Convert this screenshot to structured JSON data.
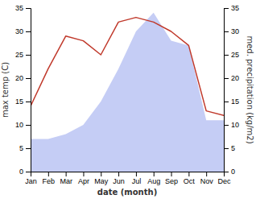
{
  "chart_data": {
    "type": "line",
    "categories": [
      "Jan",
      "Feb",
      "Mar",
      "Apr",
      "May",
      "Jun",
      "Jul",
      "Aug",
      "Sep",
      "Oct",
      "Nov",
      "Dec"
    ],
    "xlabel": "date (month)",
    "ylabel": "max temp (C)",
    "y2label": "med. precipitation (kg/m2)",
    "series": [
      {
        "type": "area",
        "axis": "y2",
        "color": "#c5cdf5",
        "values": [
          7,
          7,
          8,
          10,
          15,
          22,
          30,
          34,
          28,
          27,
          11,
          11
        ]
      },
      {
        "type": "line",
        "color": "#c0392b",
        "values": [
          14,
          22,
          29,
          28,
          25,
          32,
          33,
          32,
          30,
          27,
          13,
          12
        ]
      }
    ],
    "ylim": [
      0,
      35
    ],
    "yticks": [
      0,
      5,
      10,
      15,
      20,
      25,
      30,
      35
    ],
    "y2lim": [
      0,
      35
    ],
    "y2ticks": [
      0,
      5,
      10,
      15,
      20,
      25,
      30,
      35
    ],
    "grid": false
  }
}
